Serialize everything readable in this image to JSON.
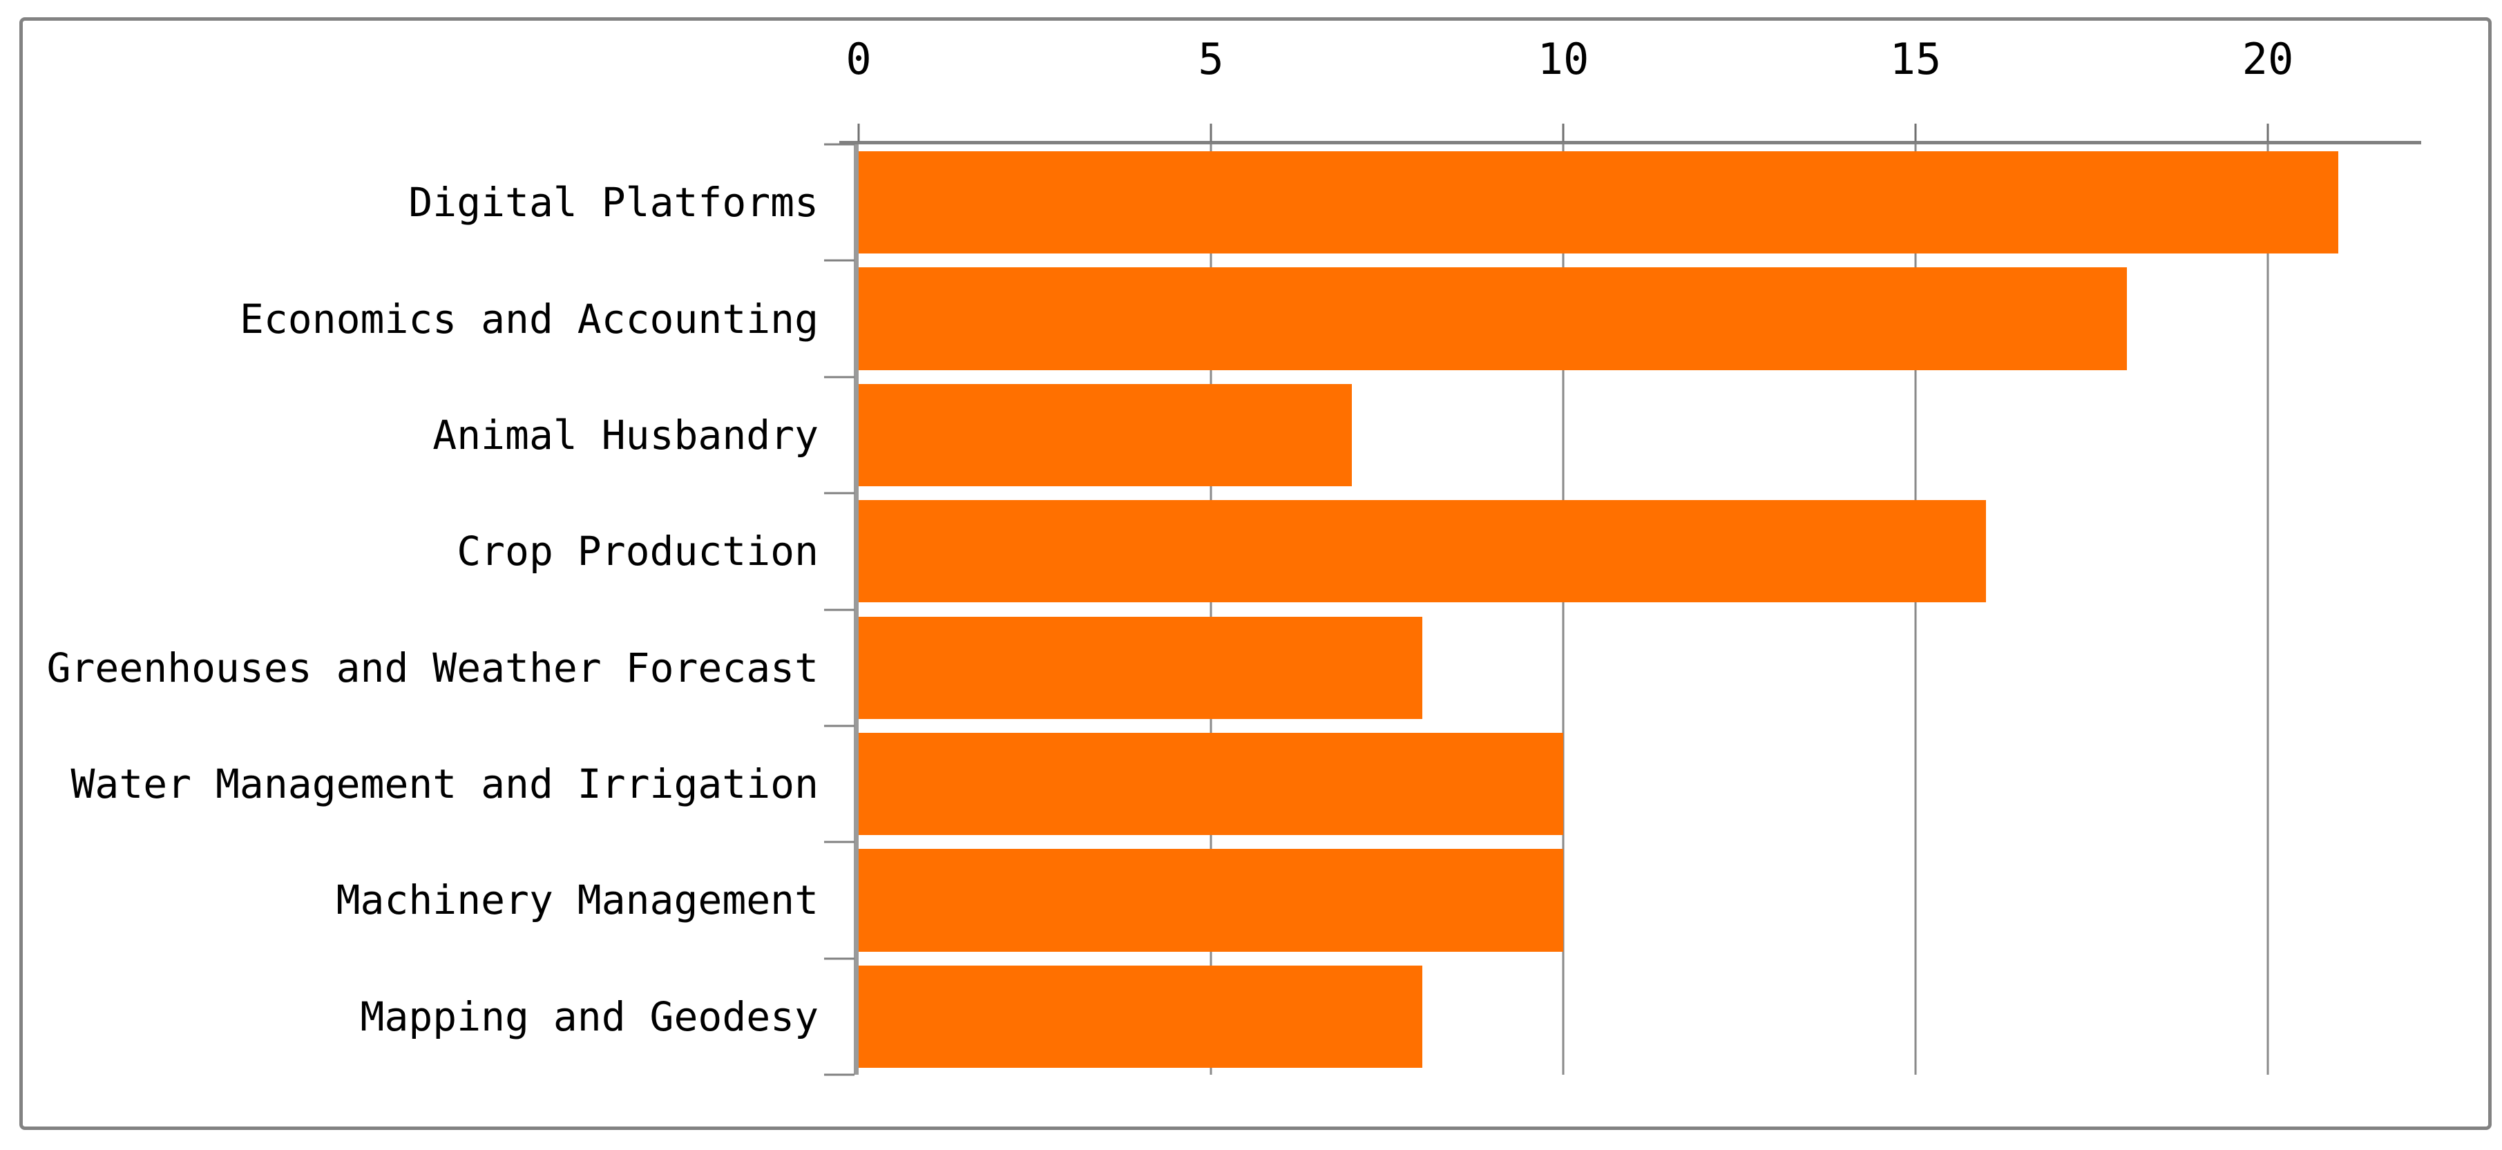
{
  "chart_data": {
    "type": "bar",
    "orientation": "horizontal",
    "title": "",
    "xlabel": "",
    "ylabel": "",
    "categories": [
      "Digital Platforms",
      "Economics and Accounting",
      "Animal Husbandry",
      "Crop Production",
      "Greenhouses and Weather Forecast",
      "Water Management and Irrigation",
      "Machinery Management",
      "Mapping and Geodesy"
    ],
    "values": [
      21,
      18,
      7,
      16,
      8,
      10,
      10,
      8
    ],
    "xlim": [
      0,
      22
    ],
    "x_ticks": [
      0,
      5,
      10,
      15,
      20
    ],
    "grid": true,
    "legend": "none",
    "bar_color": "#FF7000",
    "axis_color": "#808080",
    "gridline_color": "#8A8A8A",
    "text_color": "#000000"
  }
}
